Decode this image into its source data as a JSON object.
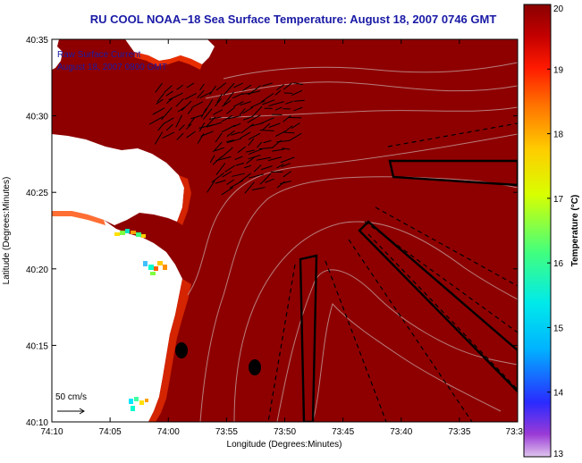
{
  "title": "RU COOL  NOAA−18  Sea Surface Temperature:  August 18, 2007 0746 GMT",
  "overlay": {
    "line1": "Raw Surface Current",
    "line2": "August 18, 2007 0800 GMT"
  },
  "scale": {
    "label": "50 cm/s"
  },
  "axes": {
    "xlabel": "Longitude (Degrees:Minutes)",
    "ylabel": "Latitude (Degrees:Minutes)",
    "x_ticks": [
      "74:10",
      "74:05",
      "74:00",
      "73:55",
      "73:50",
      "73:45",
      "73:40",
      "73:35",
      "73:3"
    ],
    "y_ticks": [
      "40:35",
      "40:30",
      "40:25",
      "40:20",
      "40:15",
      "40:10"
    ]
  },
  "colorbar": {
    "label": "Temperature (°C)",
    "ticks": [
      "20",
      "19",
      "18",
      "17",
      "16",
      "15",
      "14",
      "13"
    ],
    "min": 13,
    "max": 20
  },
  "colors": {
    "sea": "#8e0000",
    "land": "#ffffff",
    "title": "#1a1aa6"
  }
}
